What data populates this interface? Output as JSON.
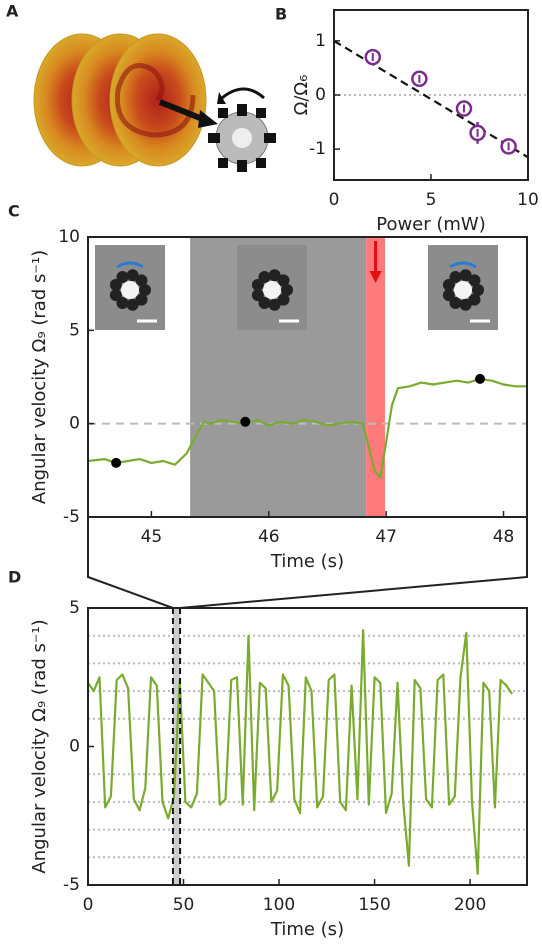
{
  "illustration": {
    "label": "A"
  },
  "chart_data": [
    {
      "type": "scatter",
      "label": "B",
      "xlabel": "Power (mW)",
      "ylabel": "Ω/Ω₆",
      "xlim": [
        0,
        10
      ],
      "xticks": [
        0,
        5,
        10
      ],
      "ylim": [
        -1.57,
        1.57
      ],
      "yticks": [
        -1,
        0,
        1
      ],
      "zero_line": true,
      "points": {
        "x": [
          2.0,
          4.4,
          6.7,
          7.4,
          9.0
        ],
        "values": [
          0.7,
          0.3,
          -0.25,
          -0.7,
          -0.95
        ],
        "errors": [
          0.15,
          0.05,
          0.05,
          0.2,
          0.05
        ],
        "color": "#7b2d8e"
      },
      "fit": {
        "x": [
          0,
          10
        ],
        "values": [
          1.0,
          -1.15
        ],
        "color": "#111"
      }
    },
    {
      "type": "line",
      "label": "C",
      "xlabel": "Time (s)",
      "ylabel": "Angular velocity Ω₉ (rad s⁻¹)",
      "xlim": [
        44.46,
        48.2
      ],
      "xticks": [
        45,
        46,
        47,
        48
      ],
      "ylim": [
        -5,
        10
      ],
      "yticks": [
        -5,
        0,
        5,
        10
      ],
      "zero_line": true,
      "regions": [
        {
          "xlim": [
            45.33,
            46.83
          ],
          "color": "#9a9a9a"
        },
        {
          "xlim": [
            46.83,
            46.99
          ],
          "color": "#ff7b7b"
        }
      ],
      "series": [
        {
          "color": "#7aab2e",
          "x": [
            44.46,
            44.6,
            44.7,
            44.8,
            44.9,
            45.0,
            45.1,
            45.2,
            45.3,
            45.4,
            45.45,
            45.5,
            45.6,
            45.7,
            45.8,
            45.9,
            46.0,
            46.1,
            46.2,
            46.3,
            46.4,
            46.5,
            46.6,
            46.7,
            46.8,
            46.85,
            46.9,
            46.95,
            47.0,
            47.05,
            47.1,
            47.2,
            47.3,
            47.4,
            47.5,
            47.6,
            47.7,
            47.8,
            47.9,
            48.0,
            48.1,
            48.2
          ],
          "values": [
            -2.0,
            -1.9,
            -2.1,
            -2.0,
            -1.9,
            -2.1,
            -2.0,
            -2.2,
            -1.6,
            -0.4,
            0.1,
            0.0,
            0.2,
            0.1,
            0.0,
            0.2,
            -0.1,
            0.1,
            0.0,
            0.2,
            0.1,
            -0.1,
            0.0,
            0.1,
            0.0,
            -1.2,
            -2.5,
            -2.9,
            -1.0,
            1.0,
            1.9,
            2.0,
            2.2,
            2.1,
            2.2,
            2.3,
            2.2,
            2.4,
            2.3,
            2.1,
            2.0,
            2.0
          ]
        }
      ],
      "markers": {
        "x": [
          44.7,
          45.8,
          47.8
        ],
        "values": [
          -2.1,
          0.1,
          2.4
        ],
        "color": "#000"
      }
    },
    {
      "type": "line",
      "label": "D",
      "xlabel": "Time (s)",
      "ylabel": "Angular velocity Ω₉ (rad s⁻¹)",
      "xlim": [
        0,
        229.8
      ],
      "xticks": [
        0,
        50,
        100,
        150,
        200
      ],
      "ylim": [
        -5,
        5
      ],
      "yticks": [
        -5,
        0,
        5
      ],
      "hlines": [
        -4,
        -3,
        -2,
        -1,
        1,
        2,
        3,
        4
      ],
      "highlight": [
        44.46,
        48.2
      ],
      "series": [
        {
          "color": "#7aab2e",
          "x": [
            0,
            3,
            6,
            9,
            12,
            15,
            18,
            21,
            24,
            27,
            30,
            33,
            36,
            39,
            42,
            45,
            48,
            51,
            54,
            57,
            60,
            63,
            66,
            69,
            72,
            75,
            78,
            81,
            84,
            87,
            90,
            93,
            96,
            99,
            102,
            105,
            108,
            111,
            114,
            117,
            120,
            123,
            126,
            129,
            132,
            135,
            138,
            141,
            144,
            147,
            150,
            153,
            156,
            159,
            162,
            165,
            168,
            171,
            174,
            177,
            180,
            183,
            186,
            189,
            192,
            195,
            198,
            201,
            204,
            207,
            210,
            213,
            216,
            219,
            222
          ],
          "values": [
            2.3,
            2.0,
            2.5,
            -2.2,
            -1.8,
            2.4,
            2.6,
            2.1,
            -1.9,
            -2.3,
            -1.5,
            2.5,
            2.2,
            -2.0,
            -2.6,
            -1.8,
            2.4,
            -2.0,
            -2.2,
            -1.7,
            2.6,
            2.3,
            2.0,
            -2.1,
            -1.9,
            2.4,
            2.5,
            -2.1,
            4.0,
            -2.3,
            2.3,
            2.1,
            -2.0,
            -1.6,
            2.6,
            2.2,
            -1.9,
            -2.4,
            2.5,
            2.0,
            -2.2,
            -1.8,
            2.4,
            2.6,
            -2.0,
            -2.3,
            2.2,
            -1.9,
            4.2,
            -2.1,
            2.5,
            2.3,
            -2.4,
            -1.7,
            2.3,
            -2.0,
            -4.3,
            2.4,
            2.1,
            -1.9,
            -2.2,
            2.4,
            2.6,
            -2.1,
            -1.8,
            2.5,
            4.1,
            -2.0,
            -4.6,
            2.3,
            2.0,
            -2.2,
            2.4,
            2.2,
            1.9
          ]
        }
      ]
    }
  ]
}
